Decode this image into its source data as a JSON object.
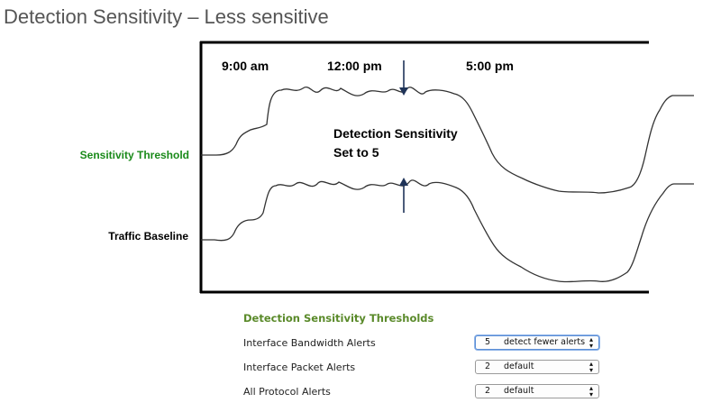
{
  "page": {
    "title": "Detection Sensitivity – Less sensitive"
  },
  "diagram": {
    "time_labels": [
      "9:00 am",
      "12:00 pm",
      "5:00 pm"
    ],
    "annotation_line1": "Detection Sensitivity",
    "annotation_line2": "Set to 5",
    "threshold_label": "Sensitivity Threshold",
    "baseline_label": "Traffic Baseline",
    "colors": {
      "threshold_label": "#1a8a1a",
      "line": "#333333",
      "arrow": "#1f3358",
      "axis": "#000000"
    }
  },
  "thresholds": {
    "title": "Detection Sensitivity Thresholds",
    "title_color": "#5a8a2a",
    "rows": [
      {
        "label": "Interface Bandwidth Alerts",
        "value": "5",
        "text": "detect fewer alerts"
      },
      {
        "label": "Interface Packet Alerts",
        "value": "2",
        "text": "default"
      },
      {
        "label": "All Protocol Alerts",
        "value": "2",
        "text": "default"
      }
    ]
  }
}
